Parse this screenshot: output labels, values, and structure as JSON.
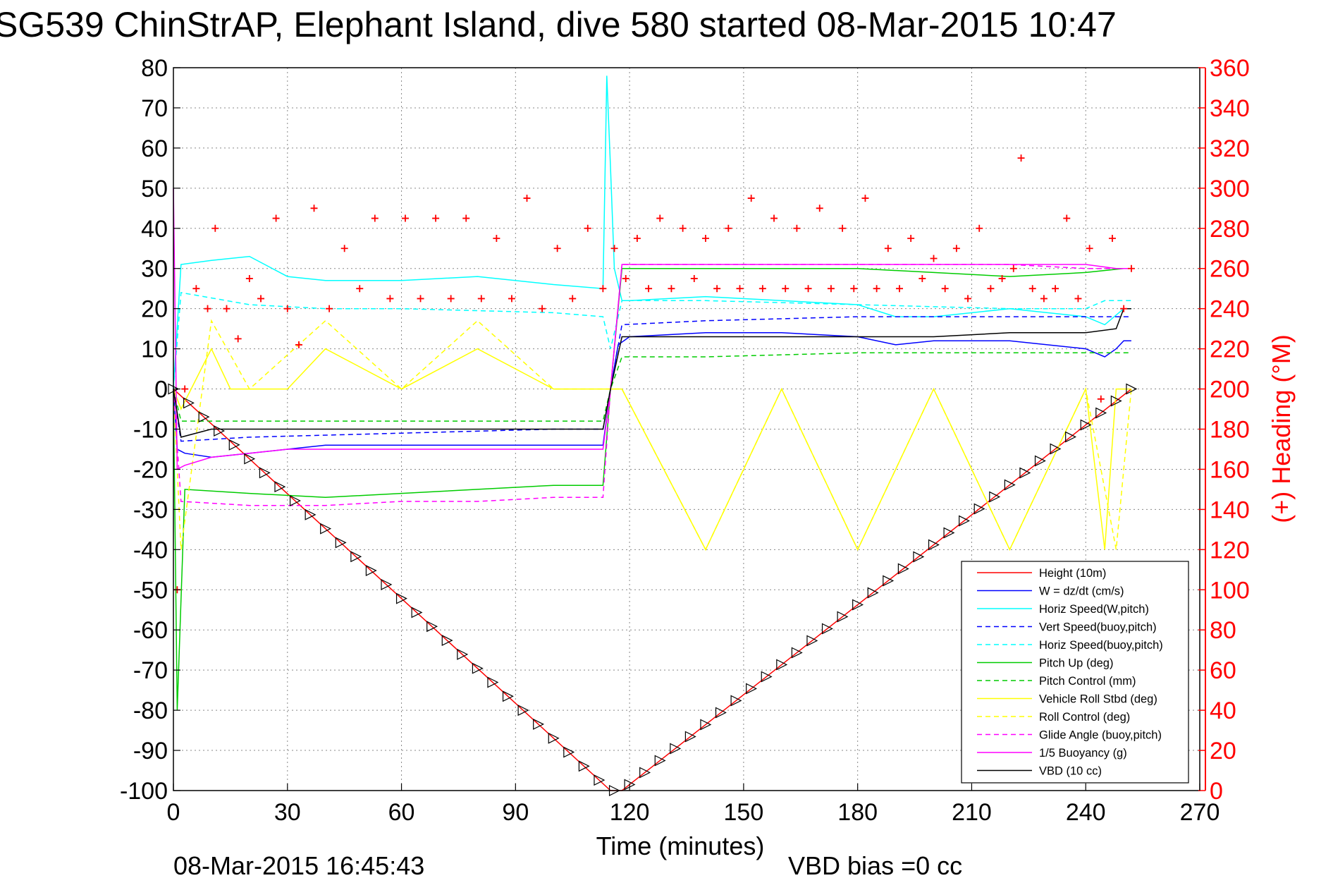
{
  "chart_data": {
    "type": "line",
    "title": "SG539 ChinStrAP, Elephant Island, dive 580 started 08-Mar-2015 10:47",
    "xlabel": "Time (minutes)",
    "ylabel": "",
    "ylabel_right": "(+) Heading (°M)",
    "footer_left": "08-Mar-2015 16:45:43",
    "footer_right": "VBD bias =0 cc",
    "xlim": [
      0,
      270
    ],
    "ylim": [
      -100,
      80
    ],
    "ylim_right": [
      0,
      360
    ],
    "x_ticks": [
      "0",
      "30",
      "60",
      "90",
      "120",
      "150",
      "180",
      "210",
      "240",
      "270"
    ],
    "y_ticks": [
      "80",
      "70",
      "60",
      "50",
      "40",
      "30",
      "20",
      "10",
      "0",
      "-10",
      "-20",
      "-30",
      "-40",
      "-50",
      "-60",
      "-70",
      "-80",
      "-90",
      "-100"
    ],
    "y_ticks_right": [
      "360",
      "340",
      "320",
      "300",
      "280",
      "260",
      "240",
      "220",
      "200",
      "180",
      "160",
      "140",
      "120",
      "100",
      "80",
      "60",
      "40",
      "20",
      "0"
    ],
    "grid": true,
    "legend_position": "bottom-right",
    "series": [
      {
        "name": "Height (10m)",
        "color": "#ff0000",
        "style": "solid",
        "x": [
          0,
          115,
          118,
          252
        ],
        "y": [
          0,
          -100,
          -100,
          0
        ]
      },
      {
        "name": "W = dz/dt (cm/s)",
        "color": "#0000ff",
        "style": "solid",
        "x": [
          0,
          1,
          3,
          10,
          20,
          30,
          40,
          60,
          80,
          100,
          113,
          115,
          117,
          120,
          140,
          160,
          180,
          190,
          200,
          220,
          240,
          245,
          248,
          250,
          252
        ],
        "y": [
          0,
          -15,
          -16,
          -17,
          -16,
          -15,
          -14,
          -14,
          -14,
          -14,
          -14,
          0,
          11,
          13,
          14,
          14,
          13,
          11,
          12,
          12,
          10,
          8,
          10,
          12,
          12
        ]
      },
      {
        "name": "Horiz Speed(W,pitch)",
        "color": "#00ffff",
        "style": "solid",
        "x": [
          0,
          2,
          10,
          20,
          30,
          40,
          60,
          80,
          100,
          113,
          114,
          115,
          116,
          118,
          120,
          140,
          160,
          180,
          190,
          200,
          220,
          240,
          245,
          250,
          252
        ],
        "y": [
          0,
          31,
          32,
          33,
          28,
          27,
          27,
          28,
          26,
          25,
          78,
          55,
          30,
          22,
          22,
          23,
          22,
          21,
          18,
          18,
          20,
          18,
          16,
          20,
          20
        ]
      },
      {
        "name": "Vert Speed(buoy,pitch)",
        "color": "#0000ff",
        "style": "dashed",
        "x": [
          0,
          2,
          20,
          60,
          100,
          113,
          115,
          118,
          140,
          180,
          220,
          245,
          252
        ],
        "y": [
          0,
          -13,
          -12,
          -11,
          -10,
          -10,
          0,
          16,
          17,
          18,
          18,
          18,
          18
        ]
      },
      {
        "name": "Horiz Speed(buoy,pitch)",
        "color": "#00ffff",
        "style": "dashed",
        "x": [
          0,
          2,
          20,
          40,
          60,
          100,
          113,
          115,
          118,
          140,
          180,
          220,
          240,
          245,
          252
        ],
        "y": [
          0,
          24,
          21,
          20,
          20,
          19,
          18,
          10,
          22,
          22,
          21,
          20,
          20,
          22,
          22
        ]
      },
      {
        "name": "Pitch Up (deg)",
        "color": "#00cc00",
        "style": "solid",
        "x": [
          0,
          1,
          3,
          20,
          40,
          60,
          80,
          100,
          113,
          115,
          118,
          140,
          160,
          180,
          200,
          220,
          240,
          250,
          252
        ],
        "y": [
          0,
          -80,
          -25,
          -26,
          -27,
          -26,
          -25,
          -24,
          -24,
          0,
          30,
          30,
          30,
          30,
          29,
          28,
          29,
          30,
          30
        ]
      },
      {
        "name": "Pitch Control (mm)",
        "color": "#00cc00",
        "style": "dashed",
        "x": [
          0,
          2,
          20,
          60,
          100,
          113,
          115,
          118,
          140,
          180,
          220,
          240,
          252
        ],
        "y": [
          0,
          -8,
          -8,
          -8,
          -8,
          -8,
          0,
          8,
          8,
          9,
          9,
          9,
          9
        ]
      },
      {
        "name": "Vehicle Roll Stbd (deg)",
        "color": "#ffff00",
        "style": "solid",
        "x": [
          0,
          2,
          10,
          15,
          20,
          30,
          40,
          60,
          80,
          100,
          113,
          115,
          118,
          140,
          160,
          180,
          200,
          220,
          240,
          245,
          248,
          252
        ],
        "y": [
          0,
          -5,
          10,
          0,
          0,
          0,
          10,
          0,
          10,
          0,
          0,
          0,
          0,
          -40,
          0,
          -40,
          0,
          -40,
          0,
          -40,
          0,
          0
        ]
      },
      {
        "name": "Roll Control (deg)",
        "color": "#ffff00",
        "style": "dashed",
        "x": [
          0,
          2,
          10,
          20,
          40,
          60,
          80,
          100,
          113,
          115,
          118,
          140,
          160,
          180,
          200,
          220,
          240,
          248,
          252
        ],
        "y": [
          0,
          -40,
          17,
          0,
          17,
          0,
          17,
          0,
          0,
          0,
          0,
          -40,
          0,
          -40,
          0,
          -40,
          0,
          -40,
          0
        ]
      },
      {
        "name": "Glide Angle (buoy,pitch)",
        "color": "#ff00ff",
        "style": "dashed",
        "x": [
          0,
          2,
          20,
          40,
          60,
          80,
          100,
          113,
          115,
          118,
          140,
          160,
          180,
          200,
          220,
          240,
          252
        ],
        "y": [
          0,
          -28,
          -29,
          -29,
          -28,
          -28,
          -27,
          -27,
          0,
          31,
          31,
          31,
          31,
          31,
          31,
          30,
          30
        ]
      },
      {
        "name": "1/5 Buoyancy (g)",
        "color": "#ff00ff",
        "style": "solid",
        "x": [
          0,
          1,
          3,
          10,
          20,
          30,
          60,
          100,
          113,
          115,
          118,
          140,
          180,
          220,
          240,
          248,
          250,
          252
        ],
        "y": [
          50,
          -20,
          -19,
          -17,
          -16,
          -15,
          -15,
          -15,
          -15,
          0,
          31,
          31,
          31,
          31,
          31,
          30,
          30,
          30
        ]
      },
      {
        "name": "VBD (10 cc)",
        "color": "#000000",
        "style": "solid",
        "x": [
          0,
          2,
          10,
          20,
          30,
          33,
          60,
          100,
          113,
          115,
          118,
          140,
          180,
          200,
          220,
          240,
          248,
          250,
          252
        ],
        "y": [
          0,
          -12,
          -10,
          -10,
          -10,
          -10,
          -10,
          -10,
          -10,
          0,
          13,
          13,
          13,
          13,
          14,
          14,
          15,
          20,
          20
        ]
      },
      {
        "name": "(+) Heading (°M)",
        "color": "#ff0000",
        "style": "markers",
        "marker": "+",
        "axis": "right",
        "x": [
          1,
          3,
          6,
          9,
          11,
          14,
          17,
          20,
          23,
          27,
          30,
          33,
          37,
          41,
          45,
          49,
          53,
          57,
          61,
          65,
          69,
          73,
          77,
          81,
          85,
          89,
          93,
          97,
          101,
          105,
          109,
          113,
          116,
          119,
          122,
          125,
          128,
          131,
          134,
          137,
          140,
          143,
          146,
          149,
          152,
          155,
          158,
          161,
          164,
          167,
          170,
          173,
          176,
          179,
          182,
          185,
          188,
          191,
          194,
          197,
          200,
          203,
          206,
          209,
          212,
          215,
          218,
          221,
          223,
          226,
          229,
          232,
          235,
          238,
          241,
          244,
          247,
          250,
          252
        ],
        "y": [
          100,
          200,
          250,
          240,
          280,
          240,
          225,
          255,
          245,
          285,
          240,
          222,
          290,
          240,
          270,
          250,
          285,
          245,
          285,
          245,
          285,
          245,
          285,
          245,
          275,
          245,
          295,
          240,
          270,
          245,
          280,
          250,
          270,
          255,
          275,
          250,
          285,
          250,
          280,
          255,
          275,
          250,
          280,
          250,
          295,
          250,
          285,
          250,
          280,
          250,
          290,
          250,
          280,
          250,
          295,
          250,
          270,
          250,
          275,
          255,
          265,
          250,
          270,
          245,
          280,
          250,
          255,
          260,
          315,
          250,
          245,
          250,
          285,
          245,
          270,
          195,
          275,
          240,
          260
        ]
      }
    ]
  }
}
